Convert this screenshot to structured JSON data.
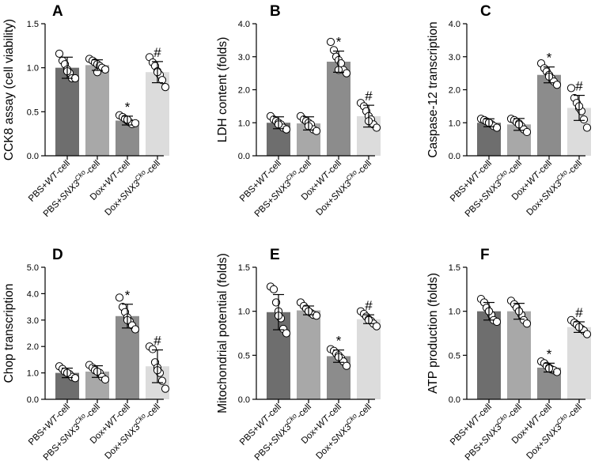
{
  "chart_data": [
    {
      "type": "bar",
      "panel": "A",
      "ylabel": "CCK8 assay (cell viability)",
      "ylim": [
        0,
        1.5
      ],
      "yticks": [
        "0.0",
        "0.5",
        "1.0",
        "1.5"
      ],
      "categories": [
        "PBS+WT-cell",
        "PBS+SNX3Cko-cell",
        "Dox+WT-cell",
        "Dox+SNX3Cko-cell"
      ],
      "values": [
        1.0,
        1.03,
        0.4,
        0.95
      ],
      "errors": [
        0.12,
        0.06,
        0.05,
        0.12
      ],
      "points": [
        [
          1.16,
          1.08,
          1.04,
          0.98,
          0.94,
          0.88,
          0.88,
          0.96
        ],
        [
          1.1,
          1.08,
          1.06,
          1.04,
          1.02,
          1.0,
          0.98,
          0.95
        ],
        [
          0.46,
          0.44,
          0.42,
          0.4,
          0.38,
          0.36,
          0.37,
          0.41
        ],
        [
          1.12,
          1.06,
          1.02,
          0.96,
          0.92,
          0.86,
          0.78,
          0.95
        ]
      ],
      "significance": [
        "",
        "",
        "*",
        "#"
      ]
    },
    {
      "type": "bar",
      "panel": "B",
      "ylabel": "LDH content (folds)",
      "ylim": [
        0,
        4.0
      ],
      "yticks": [
        "0.0",
        "1.0",
        "2.0",
        "3.0",
        "4.0"
      ],
      "categories": [
        "PBS+WT-cell",
        "PBS+SNX3Cko-cell",
        "Dox+WT-cell",
        "Dox+SNX3Cko-cell"
      ],
      "values": [
        1.0,
        0.98,
        2.85,
        1.2
      ],
      "errors": [
        0.18,
        0.2,
        0.32,
        0.33
      ],
      "points": [
        [
          1.2,
          1.1,
          1.05,
          1.0,
          0.95,
          0.85,
          0.8,
          0.95
        ],
        [
          1.2,
          1.1,
          1.05,
          1.0,
          0.95,
          0.8,
          0.75,
          0.9
        ],
        [
          3.45,
          3.2,
          3.0,
          2.9,
          2.8,
          2.6,
          2.5,
          2.6
        ],
        [
          1.6,
          1.5,
          1.35,
          1.2,
          1.1,
          0.95,
          0.85,
          1.05
        ]
      ],
      "significance": [
        "",
        "",
        "*",
        "#"
      ]
    },
    {
      "type": "bar",
      "panel": "C",
      "ylabel": "Caspase-12 transcription",
      "ylim": [
        0,
        4.0
      ],
      "yticks": [
        "0.0",
        "1.0",
        "2.0",
        "3.0",
        "4.0"
      ],
      "categories": [
        "PBS+WT-cell",
        "PBS+SNX3Cko-cell",
        "Dox+WT-cell",
        "Dox+SNX3Cko-cell"
      ],
      "values": [
        1.0,
        0.95,
        2.45,
        1.45
      ],
      "errors": [
        0.12,
        0.18,
        0.24,
        0.38
      ],
      "points": [
        [
          1.12,
          1.08,
          1.04,
          1.0,
          0.96,
          0.9,
          0.85,
          1.0
        ],
        [
          1.12,
          1.08,
          1.02,
          0.98,
          0.9,
          0.8,
          0.72,
          0.95
        ],
        [
          2.8,
          2.65,
          2.55,
          2.45,
          2.35,
          2.25,
          2.15,
          2.4
        ],
        [
          2.05,
          1.75,
          1.6,
          1.45,
          1.35,
          1.1,
          0.85,
          1.5
        ]
      ],
      "significance": [
        "",
        "",
        "*",
        "#"
      ]
    },
    {
      "type": "bar",
      "panel": "D",
      "ylabel": "Chop transcription",
      "ylim": [
        0,
        5.0
      ],
      "yticks": [
        "0.0",
        "1.0",
        "2.0",
        "3.0",
        "4.0",
        "5.0"
      ],
      "categories": [
        "PBS+WT-cell",
        "PBS+SNX3Cko-cell",
        "Dox+WT-cell",
        "Dox+SNX3Cko-cell"
      ],
      "values": [
        1.0,
        1.05,
        3.15,
        1.25
      ],
      "errors": [
        0.18,
        0.22,
        0.45,
        0.62
      ],
      "points": [
        [
          1.25,
          1.15,
          1.05,
          1.0,
          0.95,
          0.85,
          0.8,
          1.0
        ],
        [
          1.3,
          1.2,
          1.1,
          1.05,
          1.0,
          0.85,
          0.75,
          1.05
        ],
        [
          3.85,
          3.5,
          3.3,
          3.1,
          2.95,
          2.8,
          2.65,
          3.0
        ],
        [
          2.0,
          1.9,
          1.4,
          1.2,
          1.0,
          0.7,
          0.4,
          1.1
        ]
      ],
      "significance": [
        "",
        "",
        "*",
        "#"
      ]
    },
    {
      "type": "bar",
      "panel": "E",
      "ylabel": "Mitochondrial potential (folds)",
      "ylim": [
        0,
        1.5
      ],
      "yticks": [
        "0.0",
        "0.5",
        "1.0",
        "1.5"
      ],
      "categories": [
        "PBS+WT-cell",
        "PBS+SNX3Cko-cell",
        "Dox+WT-cell",
        "Dox+SNX3Cko-cell"
      ],
      "values": [
        0.99,
        1.01,
        0.49,
        0.91
      ],
      "errors": [
        0.2,
        0.05,
        0.07,
        0.05
      ],
      "points": [
        [
          1.28,
          1.25,
          1.1,
          1.0,
          0.92,
          0.8,
          0.75,
          0.95
        ],
        [
          1.1,
          1.06,
          1.03,
          1.0,
          0.98,
          0.96,
          0.95,
          1.0
        ],
        [
          0.57,
          0.55,
          0.52,
          0.5,
          0.47,
          0.43,
          0.38,
          0.48
        ],
        [
          1.0,
          0.97,
          0.94,
          0.91,
          0.89,
          0.86,
          0.83,
          0.9
        ]
      ],
      "significance": [
        "",
        "",
        "*",
        "#"
      ]
    },
    {
      "type": "bar",
      "panel": "F",
      "ylabel": "ATP production (folds)",
      "ylim": [
        0,
        1.5
      ],
      "yticks": [
        "0.0",
        "0.5",
        "1.0",
        "1.5"
      ],
      "categories": [
        "PBS+WT-cell",
        "PBS+SNX3Cko-cell",
        "Dox+WT-cell",
        "Dox+SNX3Cko-cell"
      ],
      "values": [
        1.0,
        1.0,
        0.36,
        0.82
      ],
      "errors": [
        0.1,
        0.09,
        0.05,
        0.06
      ],
      "points": [
        [
          1.14,
          1.1,
          1.04,
          1.0,
          0.96,
          0.9,
          0.88,
          1.0
        ],
        [
          1.12,
          1.08,
          1.04,
          1.0,
          0.96,
          0.9,
          0.86,
          1.0
        ],
        [
          0.43,
          0.41,
          0.38,
          0.36,
          0.34,
          0.33,
          0.31,
          0.35
        ],
        [
          0.9,
          0.87,
          0.85,
          0.82,
          0.8,
          0.78,
          0.74,
          0.82
        ]
      ],
      "significance": [
        "",
        "",
        "*",
        "#"
      ]
    }
  ],
  "colors": {
    "bar1": "#6e6e6e",
    "bar2": "#a8a8a8",
    "bar3": "#8c8c8c",
    "bar4": "#dcdcdc",
    "axis": "#000000",
    "point_stroke": "#000000",
    "point_fill": "#ffffff"
  }
}
